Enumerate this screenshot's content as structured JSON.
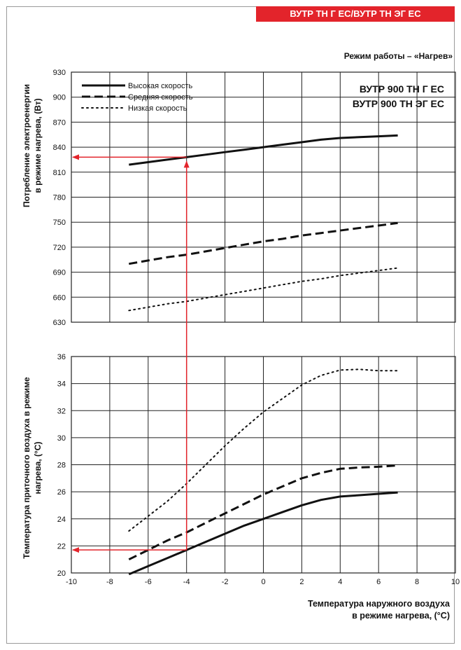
{
  "header": {
    "banner": "ВУТР ТН Г ЕС/ВУТР ТН ЭГ ЕС",
    "mode": "Режим работы – «Нагрев»"
  },
  "colors": {
    "banner": "#e3242b",
    "arrow": "#e3242b",
    "curve": "#111111",
    "grid": "#222222"
  },
  "models": [
    "ВУТР 900 ТН Г ЕС",
    "ВУТР 900 ТН ЭГ ЕС"
  ],
  "legend": [
    {
      "label": "Высокая скорость",
      "style": "solid"
    },
    {
      "label": "Средняя скорость",
      "style": "dashed"
    },
    {
      "label": "Низкая скорость",
      "style": "dotted"
    }
  ],
  "chart_data": [
    {
      "type": "line",
      "ylabel": [
        "Потребление электроенергии",
        "в режиме нагрева, (Вт)"
      ],
      "xlim": [
        -10,
        10
      ],
      "ylim": [
        630,
        930
      ],
      "yticks": [
        630,
        660,
        690,
        720,
        750,
        780,
        810,
        840,
        870,
        900,
        930
      ],
      "grid": true,
      "legend_position": "top-left",
      "series": [
        {
          "name": "Высокая скорость",
          "style": "solid",
          "x": [
            -7,
            -6,
            -5,
            -4,
            -3,
            -2,
            -1,
            0,
            1,
            2,
            3,
            4,
            5,
            6,
            7
          ],
          "y": [
            819,
            822,
            825,
            828,
            831,
            834,
            837,
            840,
            843,
            846,
            849,
            851,
            852,
            853,
            854
          ]
        },
        {
          "name": "Средняя скорость",
          "style": "dashed",
          "x": [
            -7,
            -6,
            -5,
            -4,
            -3,
            -2,
            -1,
            0,
            1,
            2,
            3,
            4,
            5,
            6,
            7
          ],
          "y": [
            700,
            704,
            708,
            711,
            715,
            719,
            723,
            727,
            730,
            734,
            737,
            740,
            743,
            746,
            749
          ]
        },
        {
          "name": "Низкая скорость",
          "style": "dotted",
          "x": [
            -7,
            -6,
            -5,
            -4,
            -3,
            -2,
            -1,
            0,
            1,
            2,
            3,
            4,
            5,
            6,
            7
          ],
          "y": [
            644,
            648,
            652,
            655,
            659,
            663,
            667,
            671,
            675,
            679,
            682,
            686,
            689,
            692,
            695
          ]
        }
      ]
    },
    {
      "type": "line",
      "ylabel": [
        "Температура приточного воздуха в режиме",
        "нагрева, (°С)"
      ],
      "xlabel": [
        "Температура наружного воздуха",
        "в режиме нагрева, (°С)"
      ],
      "xlim": [
        -10,
        10
      ],
      "xticks": [
        -10,
        -8,
        -6,
        -4,
        -2,
        0,
        2,
        4,
        6,
        8,
        10
      ],
      "ylim": [
        20,
        36
      ],
      "yticks": [
        20,
        22,
        24,
        26,
        28,
        30,
        32,
        34,
        36
      ],
      "grid": true,
      "series": [
        {
          "name": "Высокая скорость",
          "style": "solid",
          "x": [
            -7,
            -6,
            -5,
            -4,
            -3,
            -2,
            -1,
            0,
            1,
            2,
            3,
            4,
            5,
            6,
            7
          ],
          "y": [
            19.9,
            20.5,
            21.1,
            21.7,
            22.3,
            22.9,
            23.5,
            24.0,
            24.5,
            25.0,
            25.4,
            25.65,
            25.75,
            25.85,
            25.95
          ]
        },
        {
          "name": "Средняя скорость",
          "style": "dashed",
          "x": [
            -7,
            -6,
            -5,
            -4,
            -3,
            -2,
            -1,
            0,
            1,
            2,
            3,
            4,
            5,
            6,
            7
          ],
          "y": [
            21.0,
            21.7,
            22.4,
            23.0,
            23.7,
            24.4,
            25.1,
            25.8,
            26.4,
            27.0,
            27.4,
            27.7,
            27.8,
            27.85,
            27.95
          ]
        },
        {
          "name": "Низкая скорость",
          "style": "dotted",
          "x": [
            -7,
            -6,
            -5,
            -4,
            -3,
            -2,
            -1,
            0,
            1,
            2,
            3,
            4,
            5,
            6,
            7
          ],
          "y": [
            23.1,
            24.2,
            25.3,
            26.6,
            28.0,
            29.4,
            30.7,
            31.9,
            32.9,
            33.9,
            34.6,
            35.0,
            35.05,
            34.95,
            34.95
          ]
        }
      ]
    }
  ],
  "example": {
    "x": -4,
    "power": 828,
    "temperature": 21.7
  }
}
